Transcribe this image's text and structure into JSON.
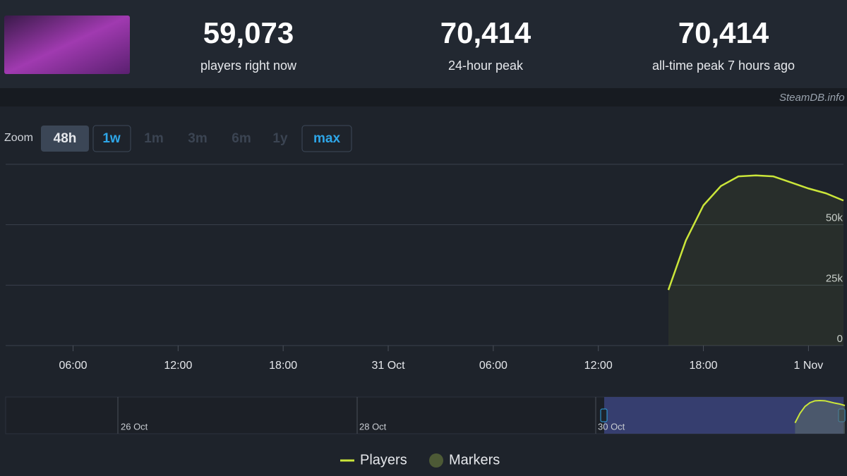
{
  "header": {
    "stats": [
      {
        "value": "59,073",
        "label": "players right now"
      },
      {
        "value": "70,414",
        "label": "24-hour peak"
      },
      {
        "value": "70,414",
        "label": "all-time peak 7 hours ago"
      }
    ],
    "source": "SteamDB.info"
  },
  "zoom": {
    "label": "Zoom",
    "buttons": [
      "48h",
      "1w",
      "1m",
      "3m",
      "6m",
      "1y",
      "max"
    ]
  },
  "navigator": {
    "labels": [
      "26 Oct",
      "28 Oct",
      "30 Oct"
    ]
  },
  "chart_data": {
    "type": "line",
    "x": [
      40,
      41,
      42,
      43,
      44,
      45,
      46,
      47,
      48,
      49,
      50
    ],
    "series": [
      {
        "name": "Players",
        "color": "#cbe63a",
        "values": [
          23000,
          43500,
          58000,
          66000,
          70000,
          70414,
          70000,
          67500,
          65000,
          63000,
          60000
        ]
      }
    ],
    "markers_label": "Markers",
    "markers_color": "#4d5a36",
    "xlim": [
      2.15,
      50
    ],
    "ylim": [
      0,
      75000
    ],
    "xticks": [
      {
        "value": 6,
        "label": "06:00"
      },
      {
        "value": 12,
        "label": "12:00"
      },
      {
        "value": 18,
        "label": "18:00"
      },
      {
        "value": 24,
        "label": "31 Oct"
      },
      {
        "value": 30,
        "label": "06:00"
      },
      {
        "value": 36,
        "label": "12:00"
      },
      {
        "value": 42,
        "label": "18:00"
      },
      {
        "value": 48,
        "label": "1 Nov"
      }
    ],
    "yticks": [
      0,
      {
        "value": 25000,
        "label": "25k"
      },
      {
        "value": 50000,
        "label": "50k"
      }
    ],
    "grid": true,
    "legend": "bottom"
  }
}
